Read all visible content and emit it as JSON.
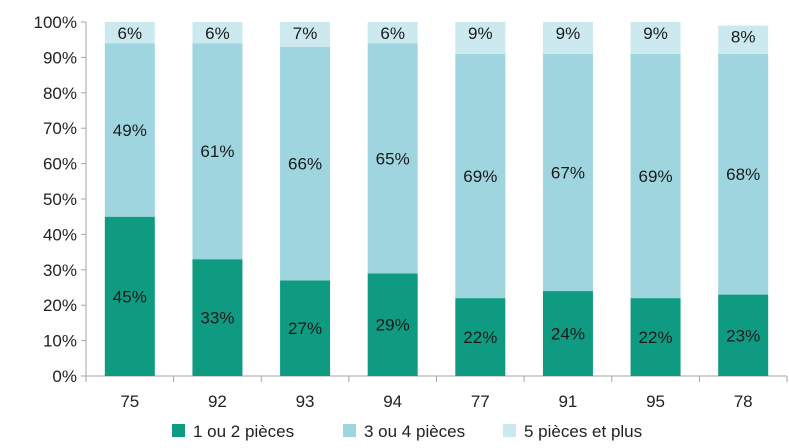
{
  "chart_data": {
    "type": "bar",
    "stacked": true,
    "categories": [
      "75",
      "92",
      "93",
      "94",
      "77",
      "91",
      "95",
      "78"
    ],
    "series": [
      {
        "name": "1 ou 2 pièces",
        "color": "#0e9b82",
        "values": [
          45,
          33,
          27,
          29,
          22,
          24,
          22,
          23
        ]
      },
      {
        "name": "3 ou 4 pièces",
        "color": "#9fd5df",
        "values": [
          49,
          61,
          66,
          65,
          69,
          67,
          69,
          68
        ]
      },
      {
        "name": "5 pièces et plus",
        "color": "#cde9f0",
        "values": [
          6,
          6,
          7,
          6,
          9,
          9,
          9,
          8
        ]
      }
    ],
    "data_labels": [
      [
        "45%",
        "33%",
        "27%",
        "29%",
        "22%",
        "24%",
        "22%",
        "23%"
      ],
      [
        "49%",
        "61%",
        "66%",
        "65%",
        "69%",
        "67%",
        "69%",
        "68%"
      ],
      [
        "6%",
        "6%",
        "7%",
        "6%",
        "9%",
        "9%",
        "9%",
        "8%"
      ]
    ],
    "ylim": [
      0,
      100
    ],
    "yticks": [
      "0%",
      "10%",
      "20%",
      "30%",
      "40%",
      "50%",
      "60%",
      "70%",
      "80%",
      "90%",
      "100%"
    ],
    "legend_position": "bottom",
    "grid": false
  }
}
